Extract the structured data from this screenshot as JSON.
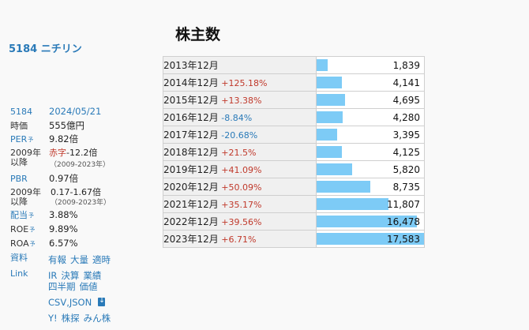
{
  "sidebar": {
    "company": "5184 ニチリン",
    "code": "5184",
    "date": "2024/05/21",
    "market_cap_label": "時価",
    "market_cap": "555億円",
    "per_label": "PER",
    "per_mark": "予",
    "per": "9.82倍",
    "since_label_1": "2009年",
    "since_label_2": "以降",
    "per_deficit": "赤字",
    "per_range": "-12.2倍",
    "per_range_years": "（2009-2023年）",
    "pbr_label": "PBR",
    "pbr": "0.97倍",
    "pbr_range": "0.17-1.67倍",
    "pbr_range_years": "（2009-2023年）",
    "div_label": "配当",
    "div_mark": "予",
    "div": "3.88%",
    "roe_label": "ROE",
    "roe_mark": "予",
    "roe": "9.89%",
    "roa_label": "ROA",
    "roa_mark": "予",
    "roa": "6.57%",
    "docs_label": "資料",
    "docs_links": [
      "有報",
      "大量",
      "適時"
    ],
    "link_label": "Link",
    "links_row1": [
      "IR",
      "決算",
      "業績"
    ],
    "links_row2": [
      "四半期",
      "価値"
    ],
    "links_row3": "CSV,JSON",
    "links_row4": [
      "Y!",
      "株探",
      "みん株"
    ]
  },
  "title": "株主数",
  "chart_data": {
    "type": "bar",
    "title": "株主数",
    "categories": [
      "2013年12月",
      "2014年12月",
      "2015年12月",
      "2016年12月",
      "2017年12月",
      "2018年12月",
      "2019年12月",
      "2020年12月",
      "2021年12月",
      "2022年12月",
      "2023年12月"
    ],
    "changes": [
      "",
      "+125.18%",
      "+13.38%",
      "-8.84%",
      "-20.68%",
      "+21.5%",
      "+41.09%",
      "+50.09%",
      "+35.17%",
      "+39.56%",
      "+6.71%"
    ],
    "values": [
      1839,
      4141,
      4695,
      4280,
      3395,
      4125,
      5820,
      8735,
      11807,
      16478,
      17583
    ],
    "labels": [
      "1,839",
      "4,141",
      "4,695",
      "4,280",
      "3,395",
      "4,125",
      "5,820",
      "8,735",
      "11,807",
      "16,478",
      "17,583"
    ],
    "max": 17583,
    "bar_color": "#7dcbf6"
  }
}
